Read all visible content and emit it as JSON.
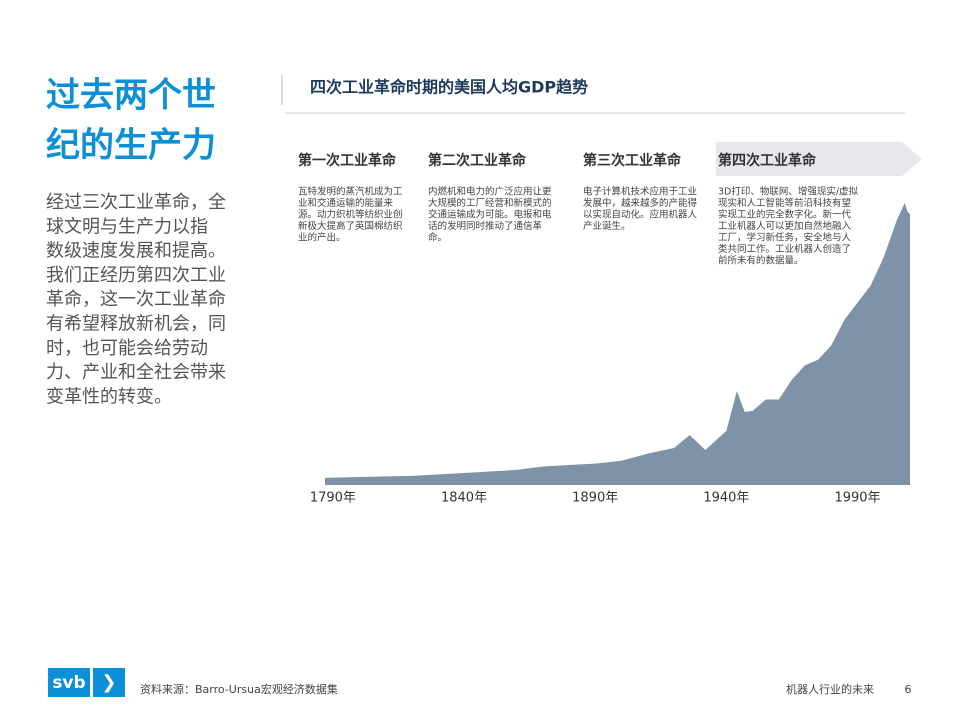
{
  "header": {
    "title": [
      "过去两个世",
      "纪的生产力"
    ]
  },
  "body": [
    "经过三次工业革命，全",
    "球文明与生产力以指",
    "数级速度发展和提高。",
    "我们正经历第四次工业",
    "革命，这一次工业革命",
    "有希望释放新机会，同",
    "时，也可能会给劳动",
    "力、产业和全社会带来",
    "变革性的转变。"
  ],
  "chart_data": {
    "type": "area",
    "title": "四次工业革命时期的美国人均GDP趋势",
    "color": "#7f93a8",
    "eras": [
      {
        "name": "第一次工业革命",
        "text": [
          "瓦特发明的蒸汽机成为工",
          "业和交通运输的能量来",
          "源。动力织机等纺织业创",
          "新极大提高了英国棉纺织",
          "业的产出。"
        ]
      },
      {
        "name": "第二次工业革命",
        "text": [
          "内燃机和电力的广泛应用让更",
          "大规模的工厂经营和新模式的",
          "交通运输成为可能。电报和电",
          "话的发明同时推动了通信革",
          "命。"
        ]
      },
      {
        "name": "第三次工业革命",
        "text": [
          "电子计算机技术应用于工业",
          "发展中，越来越多的产能得",
          "以实现自动化。应用机器人",
          "产业诞生。"
        ]
      },
      {
        "name": "第四次工业革命",
        "text": [
          "3D打印、物联网、增强现实/虚拟",
          "现实和人工智能等前沿科技有望",
          "实现工业的完全数字化。新一代",
          "工业机器人可以更加自然地融入",
          "工厂，学习新任务，安全地与人",
          "类共同工作。工业机器人创造了",
          "前所未有的数据量。"
        ]
      }
    ],
    "x": [
      1787,
      1800,
      1820,
      1840,
      1860,
      1870,
      1880,
      1890,
      1900,
      1910,
      1920,
      1926,
      1932,
      1937,
      1940,
      1944,
      1947,
      1950,
      1955,
      1960,
      1965,
      1970,
      1975,
      1980,
      1985,
      1990,
      1995,
      2000,
      2005,
      2008,
      2009,
      2010
    ],
    "values": [
      2.5,
      2.8,
      3.2,
      4.2,
      5.3,
      6.5,
      7,
      7.5,
      8.5,
      11,
      13,
      17.5,
      12.3,
      16.5,
      19,
      33,
      25.6,
      26,
      30,
      30,
      37,
      42,
      44,
      49,
      58,
      64,
      70,
      80,
      93,
      99,
      96,
      95
    ],
    "xlim": [
      1787,
      2010
    ],
    "ylim": [
      0,
      100
    ],
    "xticks": [
      {
        "value": 1790,
        "label": "1790年"
      },
      {
        "value": 1840,
        "label": "1840年"
      },
      {
        "value": 1890,
        "label": "1890年"
      },
      {
        "value": 1940,
        "label": "1940年"
      },
      {
        "value": 1990,
        "label": "1990年"
      }
    ]
  },
  "footer": {
    "logo": "svb",
    "source": "资料来源：Barro-Ursua宏观经济数据集",
    "title": "机器人行业的未来",
    "page": "6"
  }
}
